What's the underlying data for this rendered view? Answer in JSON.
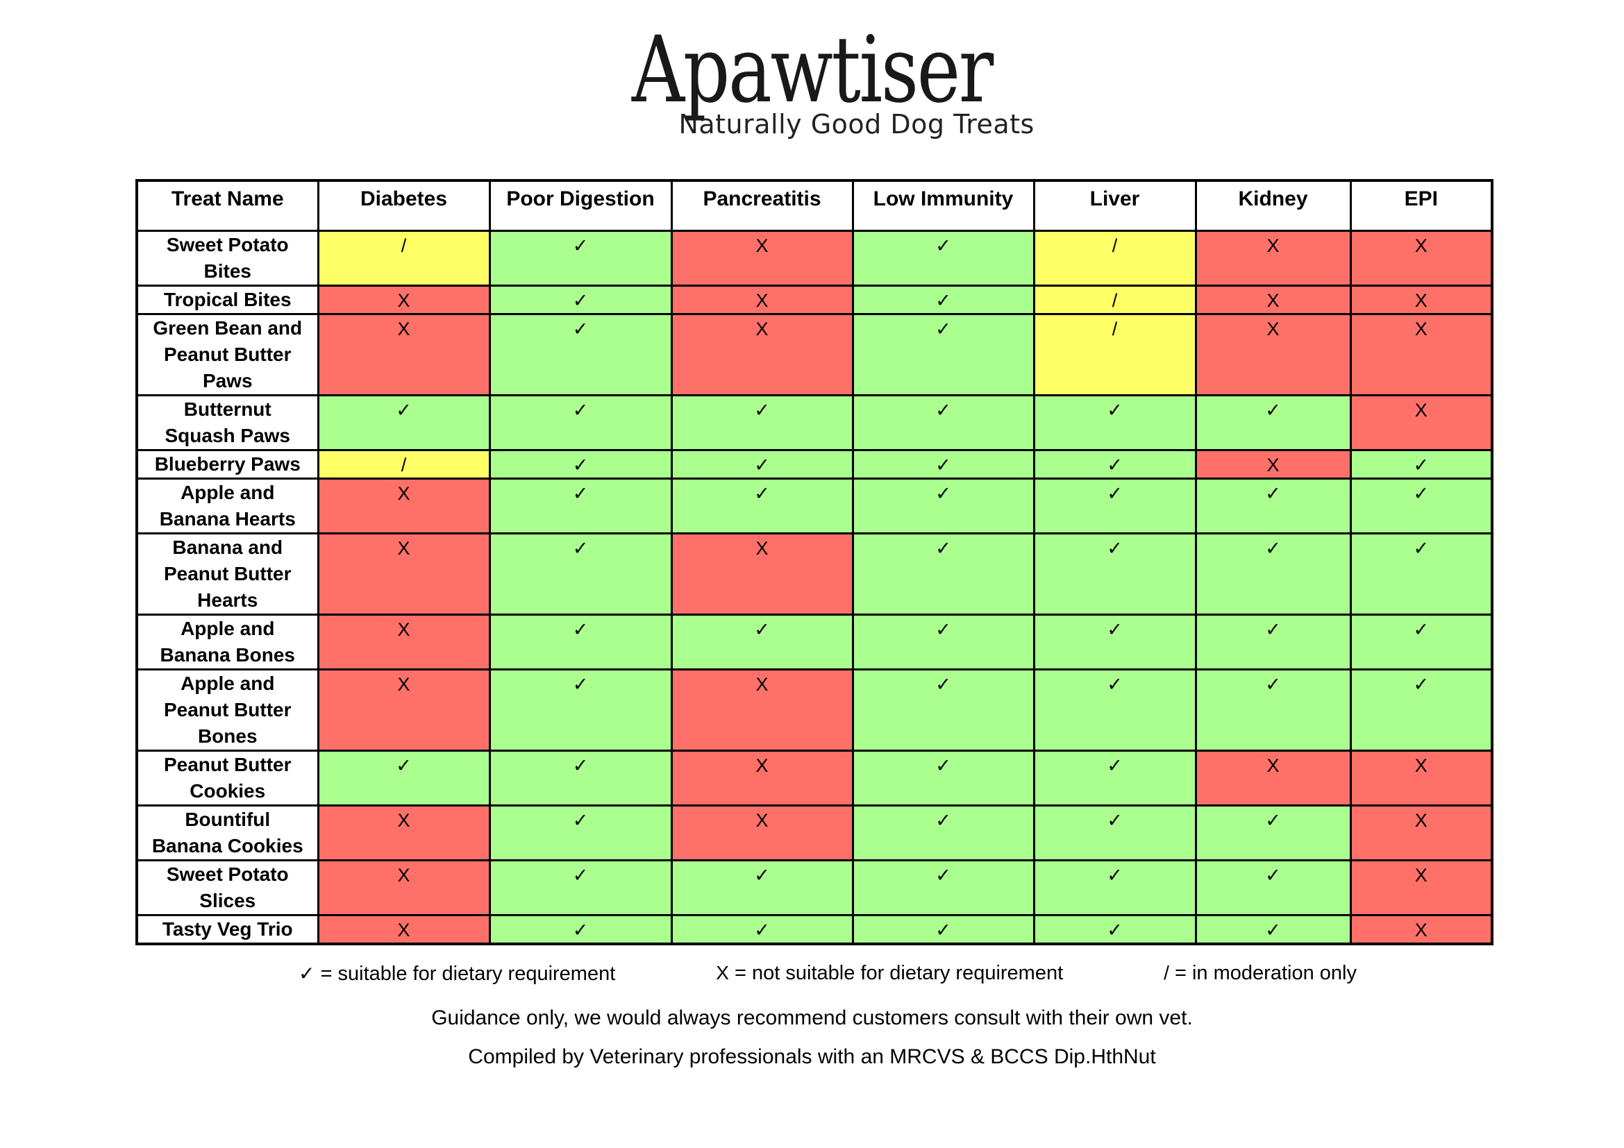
{
  "logo": {
    "title": "Apawtiser",
    "subtitle": "Naturally Good Dog Treats"
  },
  "table": {
    "columns": [
      "Treat Name",
      "Diabetes",
      "Poor Digestion",
      "Pancreatitis",
      "Low Immunity",
      "Liver",
      "Kidney",
      "EPI"
    ],
    "rows": [
      {
        "name": "Sweet Potato\nBites",
        "values": [
          "/",
          "✓",
          "X",
          "✓",
          "/",
          "X",
          "X"
        ]
      },
      {
        "name": "Tropical Bites",
        "values": [
          "X",
          "✓",
          "X",
          "✓",
          "/",
          "X",
          "X"
        ]
      },
      {
        "name": "Green Bean and\nPeanut Butter\nPaws",
        "values": [
          "X",
          "✓",
          "X",
          "✓",
          "/",
          "X",
          "X"
        ]
      },
      {
        "name": "Butternut\nSquash Paws",
        "values": [
          "✓",
          "✓",
          "✓",
          "✓",
          "✓",
          "✓",
          "X"
        ]
      },
      {
        "name": "Blueberry Paws",
        "values": [
          "/",
          "✓",
          "✓",
          "✓",
          "✓",
          "X",
          "✓"
        ]
      },
      {
        "name": "Apple and\nBanana Hearts",
        "values": [
          "X",
          "✓",
          "✓",
          "✓",
          "✓",
          "✓",
          "✓"
        ]
      },
      {
        "name": "Banana and\nPeanut Butter\nHearts",
        "values": [
          "X",
          "✓",
          "X",
          "✓",
          "✓",
          "✓",
          "✓"
        ]
      },
      {
        "name": "Apple and\nBanana Bones",
        "values": [
          "X",
          "✓",
          "✓",
          "✓",
          "✓",
          "✓",
          "✓"
        ]
      },
      {
        "name": "Apple and\nPeanut Butter\nBones",
        "values": [
          "X",
          "✓",
          "X",
          "✓",
          "✓",
          "✓",
          "✓"
        ]
      },
      {
        "name": "Peanut Butter\nCookies",
        "values": [
          "✓",
          "✓",
          "X",
          "✓",
          "✓",
          "X",
          "X"
        ]
      },
      {
        "name": "Bountiful\nBanana Cookies",
        "values": [
          "X",
          "✓",
          "X",
          "✓",
          "✓",
          "✓",
          "X"
        ]
      },
      {
        "name": "Sweet Potato\nSlices",
        "values": [
          "X",
          "✓",
          "✓",
          "✓",
          "✓",
          "✓",
          "X"
        ]
      },
      {
        "name": "Tasty Veg Trio",
        "values": [
          "X",
          "✓",
          "✓",
          "✓",
          "✓",
          "✓",
          "X"
        ]
      }
    ]
  },
  "legend": [
    {
      "mark": "✓",
      "text": "= suitable for dietary requirement"
    },
    {
      "mark": "X",
      "text": "= not suitable for dietary requirement"
    },
    {
      "mark": "/",
      "text": "= in moderation only"
    }
  ],
  "footer": {
    "guidance": "Guidance only, we would always recommend customers consult with their own vet.",
    "compiled": "Compiled by Veterinary professionals with an MRCVS & BCCS Dip.HthNut"
  },
  "colors": {
    "suitable": "#aaff8f",
    "not_suitable": "#ff7069",
    "moderation": "#ffff66",
    "border": "#000000"
  }
}
